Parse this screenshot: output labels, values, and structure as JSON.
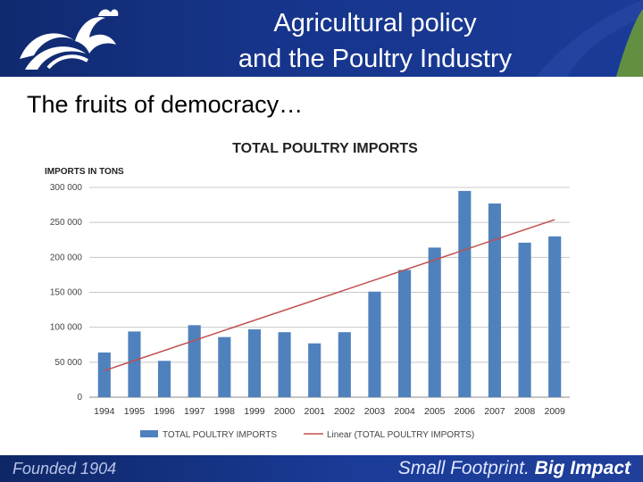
{
  "header": {
    "title_line1": "Agricultural policy",
    "title_line2": "and the Poultry Industry",
    "logo_icon": "rooster-logo-icon",
    "colors": {
      "header_bg": "#16348a",
      "accent": "#6a9a3a"
    }
  },
  "subtitle": "The fruits of democracy…",
  "footer": {
    "left_text": "Founded 1904",
    "right_text_normal": "Small Footprint.",
    "right_text_bold": "Big Impact"
  },
  "chart_data": {
    "type": "bar",
    "title": "TOTAL POULTRY IMPORTS",
    "ylabel": "IMPORTS IN TONS",
    "categories": [
      "1994",
      "1995",
      "1996",
      "1997",
      "1998",
      "1999",
      "2000",
      "2001",
      "2002",
      "2003",
      "2004",
      "2005",
      "2006",
      "2007",
      "2008",
      "2009"
    ],
    "series": [
      {
        "name": "TOTAL POULTRY IMPORTS",
        "color": "#4f81bd",
        "values": [
          64000,
          94000,
          52000,
          103000,
          86000,
          97000,
          93000,
          77000,
          93000,
          151000,
          182000,
          214000,
          295000,
          277000,
          221000,
          230000
        ]
      }
    ],
    "trendline": {
      "name": "Linear (TOTAL POULTRY IMPORTS)",
      "color": "#c0504d",
      "start": 38000,
      "end": 254000
    },
    "ylim": [
      0,
      300000
    ],
    "yticks": [
      0,
      50000,
      100000,
      150000,
      200000,
      250000,
      300000
    ],
    "ytick_labels": [
      "0",
      "50 000",
      "100 000",
      "150 000",
      "200 000",
      "250 000",
      "300 000"
    ],
    "grid": true,
    "legend_position": "bottom"
  }
}
